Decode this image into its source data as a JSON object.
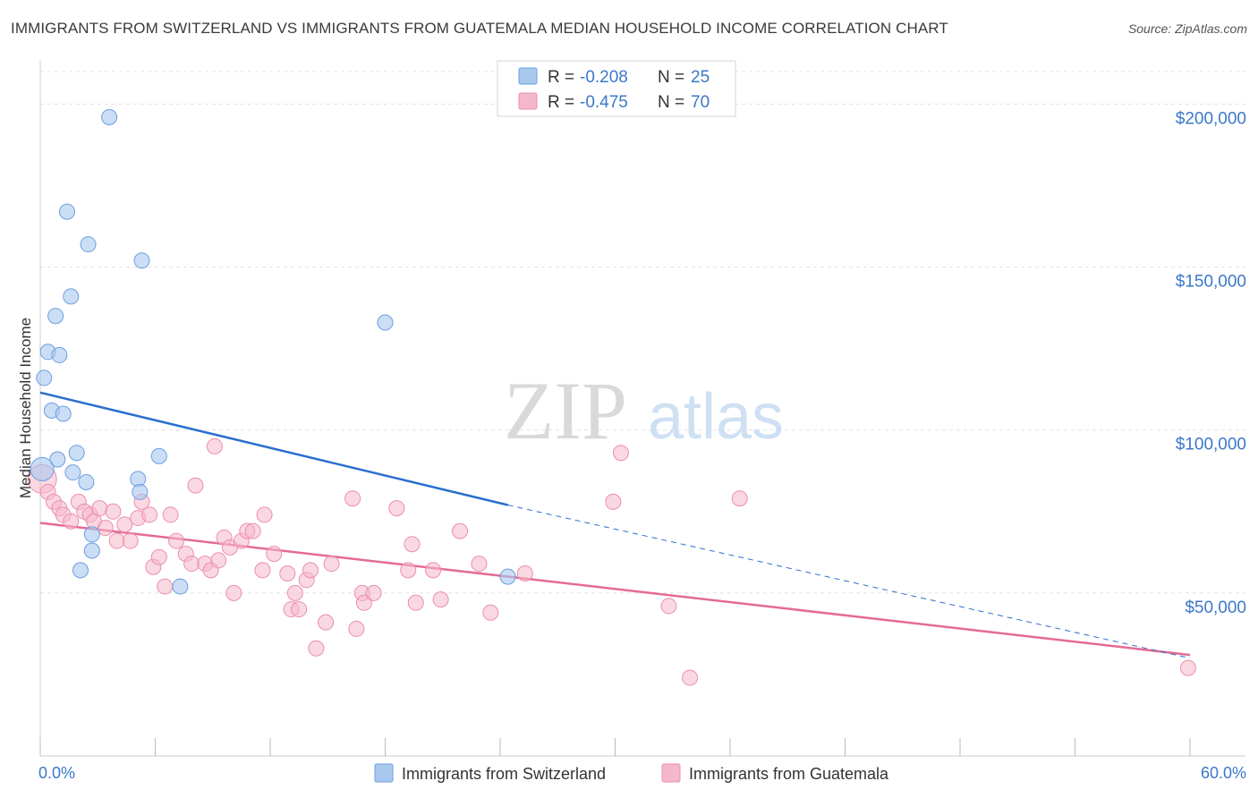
{
  "header": {
    "title": "IMMIGRANTS FROM SWITZERLAND VS IMMIGRANTS FROM GUATEMALA MEDIAN HOUSEHOLD INCOME CORRELATION CHART",
    "source": "Source: ZipAtlas.com"
  },
  "watermark": {
    "zip": "ZIP",
    "atlas": "atlas"
  },
  "colors": {
    "blue": "#a9c8ef",
    "blue_stroke": "#6d9ee0",
    "blue_line": "#2a6fcf",
    "pink": "#f5b8cb",
    "pink_stroke": "#ea8fad",
    "pink_line": "#e46b95",
    "axis_text": "#3b78c8",
    "grid": "#e1e1e1"
  },
  "chart_data": {
    "type": "scatter",
    "title": "IMMIGRANTS FROM SWITZERLAND VS IMMIGRANTS FROM GUATEMALA MEDIAN HOUSEHOLD INCOME CORRELATION CHART",
    "xlabel": "",
    "ylabel": "Median Household Income",
    "xlim": [
      0,
      60
    ],
    "ylim": [
      0,
      210000
    ],
    "x_tick_labels": [
      "0.0%",
      "60.0%"
    ],
    "y_ticks": [
      50000,
      100000,
      150000,
      200000
    ],
    "y_tick_labels": [
      "$50,000",
      "$100,000",
      "$150,000",
      "$200,000"
    ],
    "legend_stats": [
      {
        "r_label": "R =",
        "r_value": "-0.208",
        "n_label": "N =",
        "n_value": "25"
      },
      {
        "r_label": "R =",
        "r_value": "-0.475",
        "n_label": "N =",
        "n_value": "70"
      }
    ],
    "series": [
      {
        "name": "Immigrants from Switzerland",
        "color": "#a9c8ef",
        "points": [
          [
            3.6,
            196000
          ],
          [
            1.4,
            167000
          ],
          [
            2.5,
            157000
          ],
          [
            5.3,
            152000
          ],
          [
            1.6,
            141000
          ],
          [
            0.8,
            135000
          ],
          [
            18.0,
            133000
          ],
          [
            0.4,
            124000
          ],
          [
            1.0,
            123000
          ],
          [
            0.2,
            116000
          ],
          [
            0.6,
            106000
          ],
          [
            1.2,
            105000
          ],
          [
            1.9,
            93000
          ],
          [
            6.2,
            92000
          ],
          [
            0.9,
            91000
          ],
          [
            0.1,
            88000
          ],
          [
            1.7,
            87000
          ],
          [
            2.4,
            84000
          ],
          [
            5.1,
            85000
          ],
          [
            5.2,
            81000
          ],
          [
            2.7,
            68000
          ],
          [
            2.7,
            63000
          ],
          [
            2.1,
            57000
          ],
          [
            7.3,
            52000
          ],
          [
            24.4,
            55000
          ]
        ],
        "trend": {
          "x": [
            0,
            24.4
          ],
          "y": [
            111500,
            77000
          ]
        },
        "trend_dashed": {
          "x": [
            24.4,
            60
          ],
          "y": [
            77000,
            30000
          ]
        }
      },
      {
        "name": "Immigrants from Guatemala",
        "color": "#f5b8cb",
        "points": [
          [
            0.1,
            85000
          ],
          [
            0.4,
            81000
          ],
          [
            0.7,
            78000
          ],
          [
            1.0,
            76000
          ],
          [
            1.2,
            74000
          ],
          [
            1.6,
            72000
          ],
          [
            2.0,
            78000
          ],
          [
            2.3,
            75000
          ],
          [
            2.6,
            74000
          ],
          [
            2.8,
            72000
          ],
          [
            3.1,
            76000
          ],
          [
            3.4,
            70000
          ],
          [
            3.8,
            75000
          ],
          [
            4.0,
            66000
          ],
          [
            4.4,
            71000
          ],
          [
            4.7,
            66000
          ],
          [
            5.1,
            73000
          ],
          [
            5.3,
            78000
          ],
          [
            5.7,
            74000
          ],
          [
            5.9,
            58000
          ],
          [
            6.2,
            61000
          ],
          [
            6.5,
            52000
          ],
          [
            6.8,
            74000
          ],
          [
            7.1,
            66000
          ],
          [
            7.6,
            62000
          ],
          [
            7.9,
            59000
          ],
          [
            8.1,
            83000
          ],
          [
            8.6,
            59000
          ],
          [
            8.9,
            57000
          ],
          [
            9.1,
            95000
          ],
          [
            9.3,
            60000
          ],
          [
            9.6,
            67000
          ],
          [
            9.9,
            64000
          ],
          [
            10.1,
            50000
          ],
          [
            10.5,
            66000
          ],
          [
            10.8,
            69000
          ],
          [
            11.1,
            69000
          ],
          [
            11.6,
            57000
          ],
          [
            11.7,
            74000
          ],
          [
            12.2,
            62000
          ],
          [
            12.9,
            56000
          ],
          [
            13.1,
            45000
          ],
          [
            13.3,
            50000
          ],
          [
            13.5,
            45000
          ],
          [
            13.9,
            54000
          ],
          [
            14.1,
            57000
          ],
          [
            14.4,
            33000
          ],
          [
            14.9,
            41000
          ],
          [
            15.2,
            59000
          ],
          [
            16.3,
            79000
          ],
          [
            16.5,
            39000
          ],
          [
            16.8,
            50000
          ],
          [
            16.9,
            47000
          ],
          [
            17.4,
            50000
          ],
          [
            18.6,
            76000
          ],
          [
            19.2,
            57000
          ],
          [
            19.4,
            65000
          ],
          [
            19.6,
            47000
          ],
          [
            20.5,
            57000
          ],
          [
            20.9,
            48000
          ],
          [
            21.9,
            69000
          ],
          [
            22.9,
            59000
          ],
          [
            23.5,
            44000
          ],
          [
            25.3,
            56000
          ],
          [
            29.9,
            78000
          ],
          [
            30.3,
            93000
          ],
          [
            32.8,
            46000
          ],
          [
            33.9,
            24000
          ],
          [
            36.5,
            79000
          ],
          [
            59.9,
            27000
          ]
        ],
        "trend": {
          "x": [
            0,
            60
          ],
          "y": [
            71500,
            31000
          ]
        }
      }
    ]
  }
}
